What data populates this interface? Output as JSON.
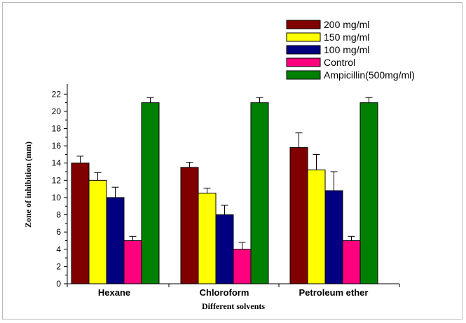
{
  "chart_data": {
    "type": "bar",
    "xlabel": "Different solvents",
    "ylabel": "Zone of inhibition (mm)",
    "ylim": [
      0,
      23
    ],
    "yticks": [
      0,
      2,
      4,
      6,
      8,
      10,
      12,
      14,
      16,
      18,
      20,
      22
    ],
    "categories": [
      "Hexane",
      "Chloroform",
      "Petroleum ether"
    ],
    "legend_position": "top-right",
    "grid": false,
    "series": [
      {
        "name": "200 mg/ml",
        "color": "#800000",
        "values": [
          14.0,
          13.5,
          15.8
        ],
        "errors": [
          0.8,
          0.6,
          1.7
        ]
      },
      {
        "name": "150 mg/ml",
        "color": "#ffff00",
        "values": [
          12.0,
          10.5,
          13.2
        ],
        "errors": [
          0.9,
          0.6,
          1.8
        ]
      },
      {
        "name": "100 mg/ml",
        "color": "#000080",
        "values": [
          10.0,
          8.0,
          10.8
        ],
        "errors": [
          1.2,
          1.1,
          2.2
        ]
      },
      {
        "name": "Control",
        "color": "#ff007f",
        "values": [
          5.0,
          4.0,
          5.0
        ],
        "errors": [
          0.5,
          0.8,
          0.5
        ]
      },
      {
        "name": "Ampicillin(500mg/ml)",
        "color": "#008000",
        "values": [
          21.0,
          21.0,
          21.0
        ],
        "errors": [
          0.6,
          0.6,
          0.6
        ]
      }
    ]
  }
}
